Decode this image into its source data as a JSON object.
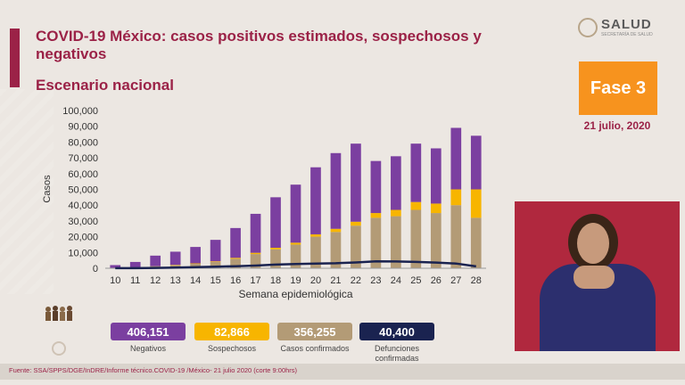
{
  "header": {
    "title": "COVID-19 México: casos positivos estimados, sospechosos y negativos",
    "subtitle": "Escenario nacional",
    "logo_name": "SALUD",
    "logo_sub": "SECRETARÍA DE SALUD",
    "phase": "Fase 3",
    "date": "21 julio, 2020"
  },
  "stats": [
    {
      "value": "406,151",
      "label": "Negativos",
      "color": "#7b3fa0"
    },
    {
      "value": "82,866",
      "label": "Sospechosos",
      "color": "#f7b500"
    },
    {
      "value": "356,255",
      "label": "Casos confirmados",
      "color": "#b39b76"
    },
    {
      "value": "40,400",
      "label": "Defunciones confirmadas",
      "color": "#1a2350"
    }
  ],
  "footer": "Fuente: SSA/SPPS/DGE/InDRE/Informe técnico.COVID-19 /México- 21 julio 2020 (corte 9:00hrs)",
  "chart_data": {
    "type": "bar",
    "stacked": true,
    "categories": [
      "10",
      "11",
      "12",
      "13",
      "14",
      "15",
      "16",
      "17",
      "18",
      "19",
      "20",
      "21",
      "22",
      "23",
      "24",
      "25",
      "26",
      "27",
      "28"
    ],
    "xlabel": "Semana epidemiológica",
    "ylabel": "Casos",
    "ylim": [
      0,
      100000
    ],
    "yticks": [
      0,
      10000,
      20000,
      30000,
      40000,
      50000,
      60000,
      70000,
      80000,
      90000,
      100000
    ],
    "ytick_labels": [
      "0",
      "10,000",
      "20,000",
      "30,000",
      "40,000",
      "50,000",
      "60,000",
      "70,000",
      "80,000",
      "90,000",
      "100,000"
    ],
    "series": [
      {
        "color": "#b39b76",
        "values": [
          200,
          600,
          1200,
          2000,
          2800,
          4000,
          6000,
          9000,
          12000,
          15000,
          20000,
          23000,
          27000,
          32000,
          33000,
          37000,
          35000,
          40000,
          32000
        ]
      },
      {
        "color": "#f7b500",
        "values": [
          0,
          0,
          100,
          200,
          300,
          400,
          600,
          800,
          1000,
          1200,
          1500,
          2000,
          2500,
          3000,
          4000,
          5000,
          6000,
          10000,
          18000
        ]
      },
      {
        "color": "#7b3fa0",
        "values": [
          1800,
          3400,
          6700,
          8300,
          10400,
          13600,
          18900,
          24700,
          32000,
          36800,
          42500,
          48000,
          49500,
          33000,
          34000,
          37000,
          35000,
          39000,
          34000
        ]
      }
    ],
    "line": {
      "color": "#1a2350",
      "values": [
        50,
        100,
        200,
        400,
        700,
        1000,
        1300,
        1700,
        2300,
        2700,
        3000,
        3200,
        3700,
        4400,
        4300,
        4000,
        3600,
        3000,
        1200
      ]
    }
  }
}
